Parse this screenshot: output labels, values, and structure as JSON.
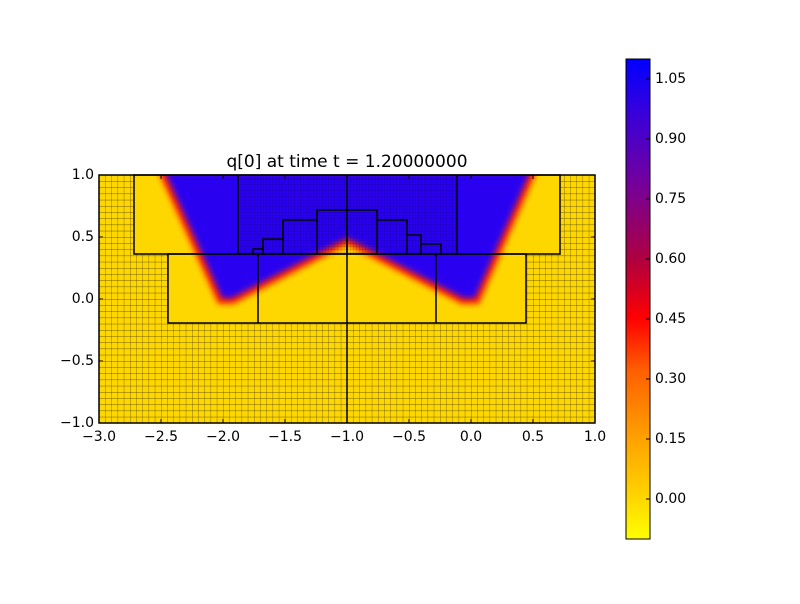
{
  "chart_data": {
    "type": "heatmap",
    "title": "q[0] at time t =      1.20000000",
    "xlim": [
      -3,
      1
    ],
    "xticks": [
      {
        "value": -3,
        "label": "−3.0"
      },
      {
        "value": -2.5,
        "label": "−2.5"
      },
      {
        "value": -2,
        "label": "−2.0"
      },
      {
        "value": -1.5,
        "label": "−1.5"
      },
      {
        "value": -1,
        "label": "−1.0"
      },
      {
        "value": -0.5,
        "label": "−0.5"
      },
      {
        "value": 0,
        "label": "0.0"
      },
      {
        "value": 0.5,
        "label": "0.5"
      },
      {
        "value": 1,
        "label": "1.0"
      }
    ],
    "ylim": [
      -1,
      1
    ],
    "yticks": [
      {
        "value": -1,
        "label": "−1.0"
      },
      {
        "value": -0.5,
        "label": "−0.5"
      },
      {
        "value": 0,
        "label": "0.0"
      },
      {
        "value": 0.5,
        "label": "0.5"
      },
      {
        "value": 1,
        "label": "1.0"
      }
    ],
    "clim": [
      -0.1,
      1.1
    ],
    "cticks": [
      {
        "value": 0,
        "label": "0.00"
      },
      0.15,
      {
        "value": 0.3,
        "label": "0.30"
      },
      0.45,
      {
        "value": 0.6,
        "label": "0.60"
      },
      0.75,
      {
        "value": 0.9,
        "label": "0.90"
      },
      1.05
    ]
  }
}
